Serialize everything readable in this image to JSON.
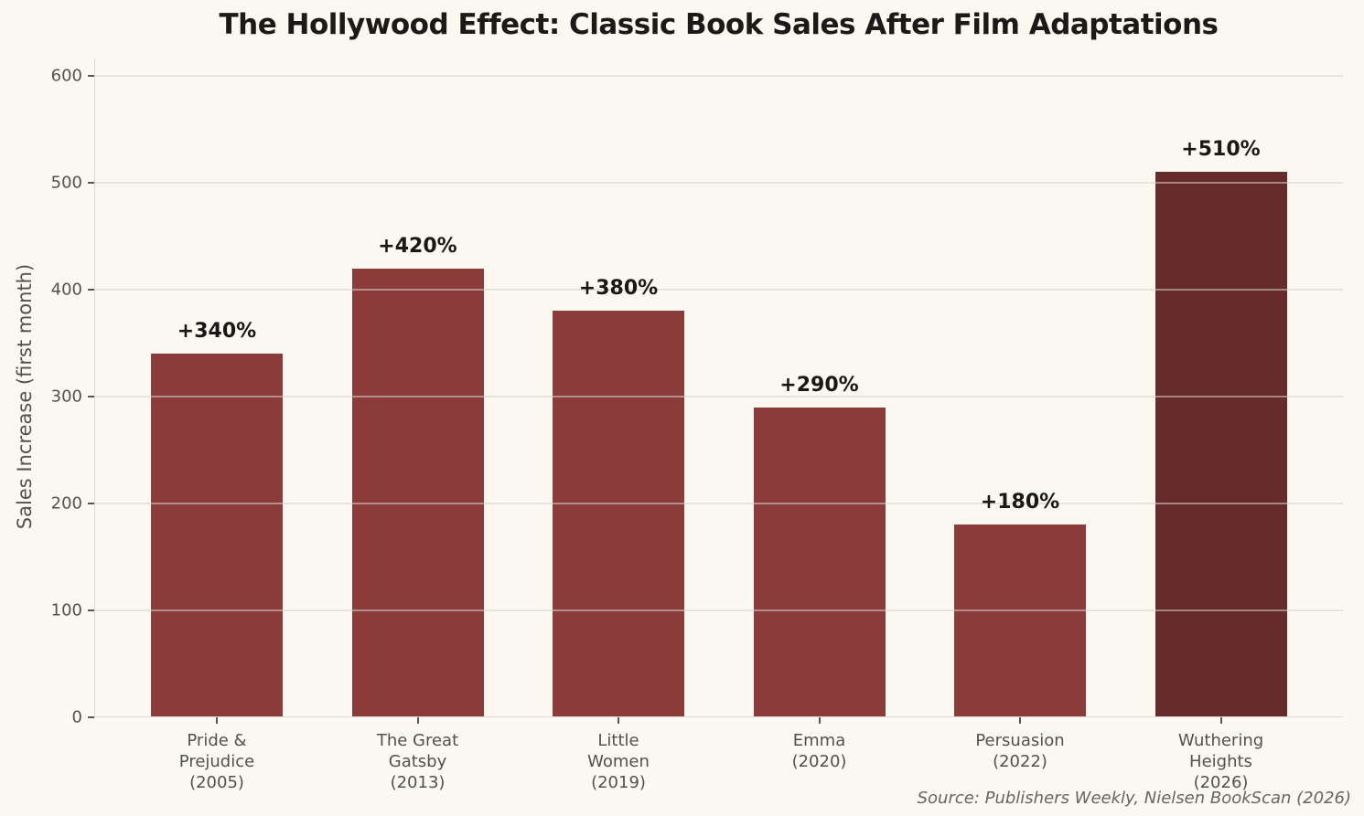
{
  "title": "The Hollywood Effect: Classic Book Sales After Film Adaptations",
  "source_note": "Source: Publishers Weekly, Nielsen BookScan (2026)",
  "chart_data": {
    "type": "bar",
    "title": "The Hollywood Effect: Classic Book Sales After Film Adaptations",
    "ylabel": "Sales Increase (first month)",
    "xlabel": "",
    "categories": [
      "Pride &\nPrejudice\n(2005)",
      "The Great\nGatsby\n(2013)",
      "Little\nWomen\n(2019)",
      "Emma\n(2020)",
      "Persuasion\n(2022)",
      "Wuthering\nHeights\n(2026)"
    ],
    "values": [
      340,
      420,
      380,
      290,
      180,
      510
    ],
    "bar_labels": [
      "+340%",
      "+420%",
      "+380%",
      "+290%",
      "+180%",
      "+510%"
    ],
    "ylim": [
      0,
      600
    ],
    "yticks": [
      0,
      100,
      200,
      300,
      400,
      500,
      600
    ],
    "grid": true,
    "legend": false,
    "bar_color": "#8C3B3B",
    "highlight_color": "#662B2B",
    "highlight_index": 5,
    "background_color": "#FAF8F1"
  }
}
